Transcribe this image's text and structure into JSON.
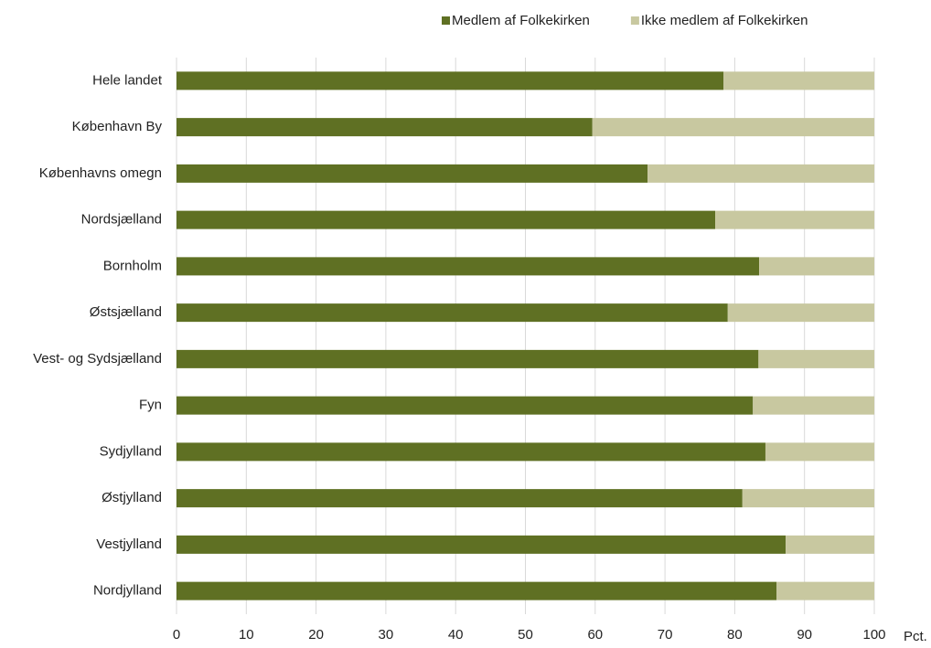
{
  "chart_data": {
    "type": "stacked-barh",
    "categories": [
      "Hele landet",
      "København By",
      "Københavns omegn",
      "Nordsjælland",
      "Bornholm",
      "Østsjælland",
      "Vest- og Sydsjælland",
      "Fyn",
      "Sydjylland",
      "Østjylland",
      "Vestjylland",
      "Nordjylland"
    ],
    "series": [
      {
        "name": "Medlem af Folkekirken",
        "color": "#5f7023",
        "values": [
          78.4,
          59.6,
          67.5,
          77.2,
          83.5,
          79.0,
          83.4,
          82.6,
          84.4,
          81.1,
          87.3,
          86.0
        ]
      },
      {
        "name": "Ikke medlem af Folkekirken",
        "color": "#c8c8a0",
        "values": [
          21.6,
          40.4,
          32.5,
          22.8,
          16.5,
          21.0,
          16.6,
          17.4,
          15.6,
          18.9,
          12.7,
          14.0
        ]
      }
    ],
    "xlabel": "Pct.",
    "xlim": [
      0,
      100
    ],
    "xticks": [
      0,
      10,
      20,
      30,
      40,
      50,
      60,
      70,
      80,
      90,
      100
    ],
    "grid": true,
    "legend": "top"
  }
}
